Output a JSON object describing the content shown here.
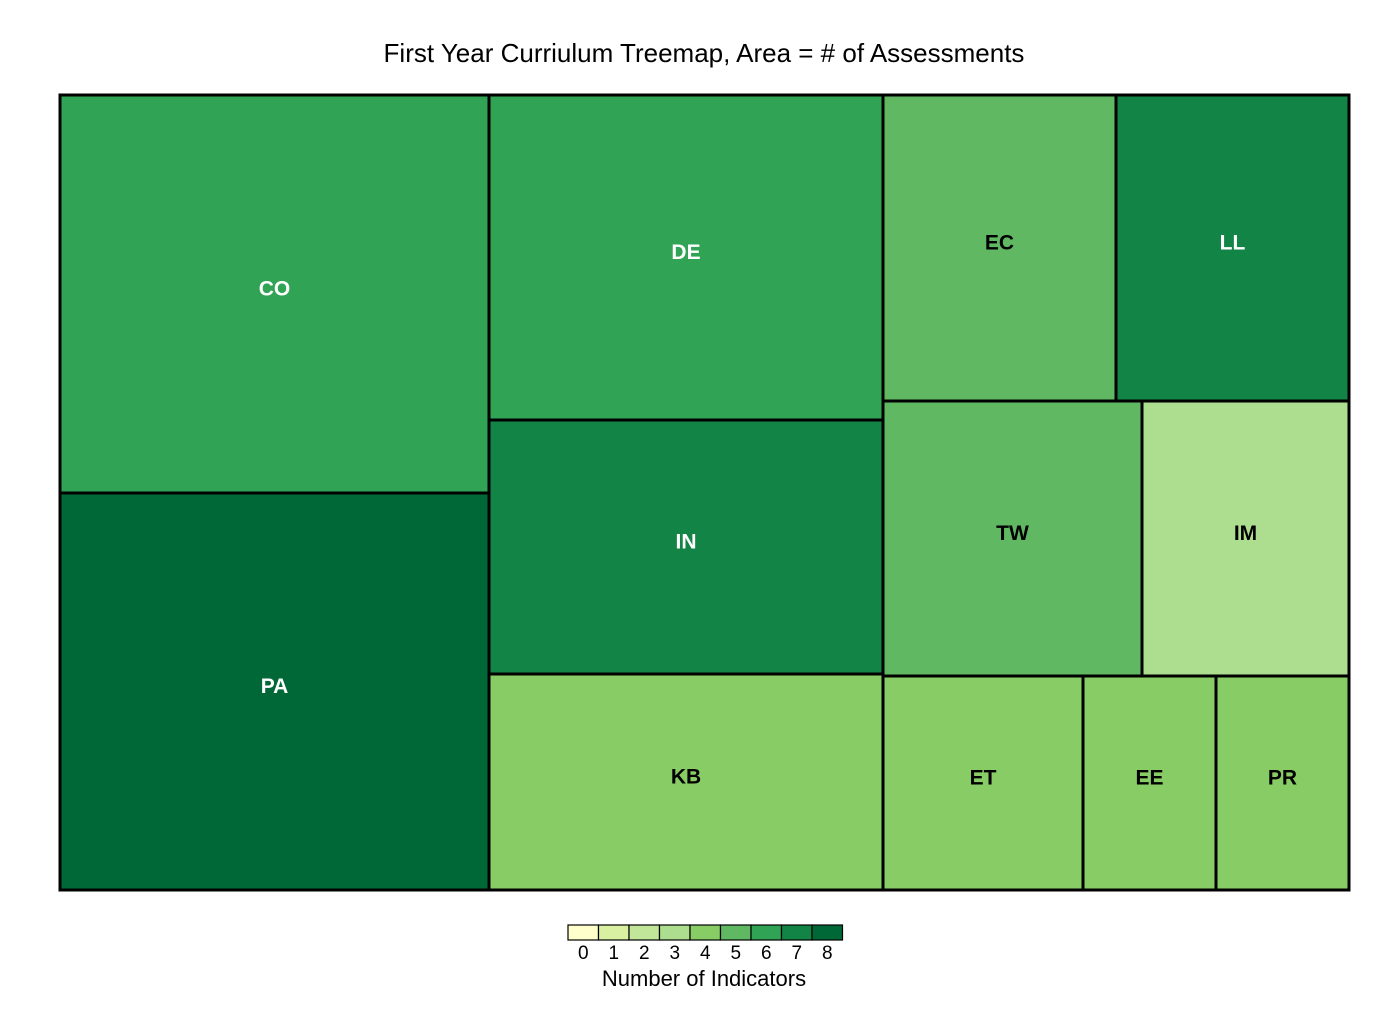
{
  "chart_data": {
    "type": "treemap",
    "title": "First Year Curriulum Treemap, Area = # of Assessments",
    "color_measure": "Number of Indicators",
    "nodes": [
      {
        "label": "CO",
        "indicators": 6
      },
      {
        "label": "PA",
        "indicators": 8
      },
      {
        "label": "DE",
        "indicators": 6
      },
      {
        "label": "IN",
        "indicators": 7
      },
      {
        "label": "KB",
        "indicators": 4
      },
      {
        "label": "EC",
        "indicators": 5
      },
      {
        "label": "LL",
        "indicators": 7
      },
      {
        "label": "TW",
        "indicators": 5
      },
      {
        "label": "IM",
        "indicators": 3
      },
      {
        "label": "ET",
        "indicators": 4
      },
      {
        "label": "EE",
        "indicators": 4
      },
      {
        "label": "PR",
        "indicators": 4
      }
    ],
    "legend": {
      "title": "Number of Indicators",
      "ticks": [
        "0",
        "1",
        "2",
        "3",
        "4",
        "5",
        "6",
        "7",
        "8"
      ],
      "colors": [
        "#ffffcc",
        "#d9f0a3",
        "#c2e699",
        "#addd8e",
        "#88cc66",
        "#60b862",
        "#31a354",
        "#128446",
        "#006837"
      ]
    }
  }
}
